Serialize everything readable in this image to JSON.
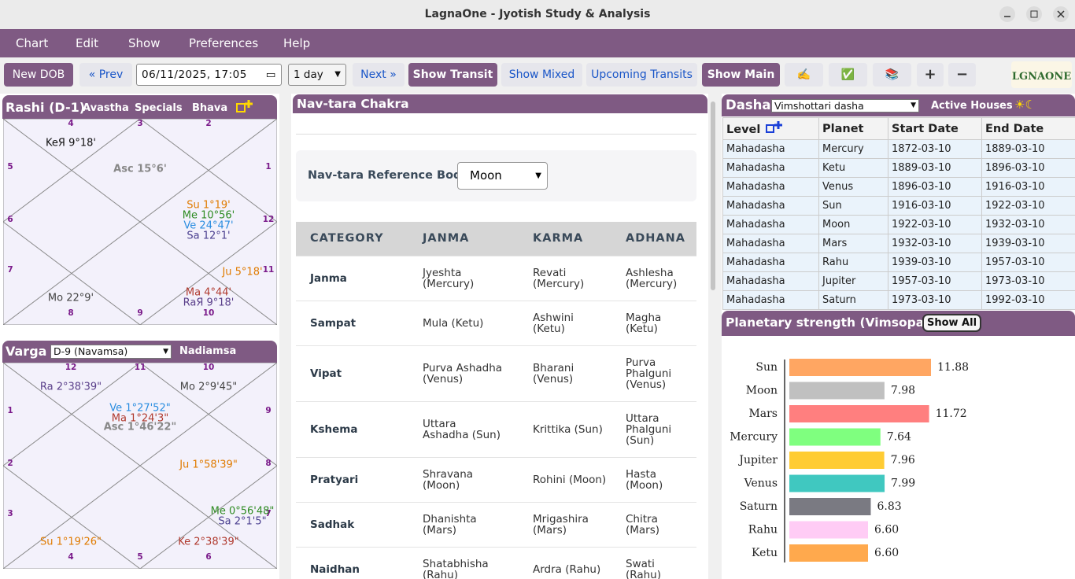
{
  "window": {
    "title": "LagnaOne - Jyotish Study & Analysis"
  },
  "menu": [
    "Chart",
    "Edit",
    "Show",
    "Preferences",
    "Help"
  ],
  "toolbar": {
    "new_dob": "New DOB",
    "prev": "« Prev",
    "datetime": "06/11/2025, 17:05",
    "step": "1 day",
    "next": "Next »",
    "show_transit": "Show Transit",
    "show_mixed": "Show Mixed",
    "upcoming_transits": "Upcoming Transits",
    "show_main": "Show Main",
    "icons": [
      "✍️",
      "✅",
      "📚",
      "+",
      "−"
    ],
    "logo": "LGNAONE"
  },
  "rashi": {
    "title": "Rashi (D-1)",
    "tabs": [
      "Avastha",
      "Specials",
      "Bhava"
    ],
    "houses": [
      "4",
      "3",
      "2",
      "5",
      "1",
      "6",
      "12",
      "7",
      "11",
      "8",
      "9",
      "10"
    ],
    "planets": [
      "KeЯ 9°18'",
      "Asc 15°6'",
      "Su 1°19'",
      "Me 10°56'",
      "Ve 24°47'",
      "Sa 12°1'",
      "Ju 5°18'",
      "Mo 22°9'",
      "Ma 4°44'",
      "RaЯ 9°18'"
    ]
  },
  "varga": {
    "title": "Varga",
    "division": "D-9 (Navamsa)",
    "tab": "Nadiamsa",
    "houses": [
      "12",
      "11",
      "10",
      "1",
      "9",
      "2",
      "8",
      "3",
      "7",
      "4",
      "5",
      "6"
    ],
    "planets": [
      "Ra 2°38'39\"",
      "Mo 2°9'45\"",
      "Ve 1°27'52\"",
      "Ma 1°24'3\"",
      "Asc 1°46'22\"",
      "Ju 1°58'39\"",
      "Me 0°56'48\"",
      "Sa 2°1'5\"",
      "Su 1°19'26\"",
      "Ke 2°38'39\""
    ]
  },
  "navtara": {
    "title": "Nav-tara Chakra",
    "reference_label": "Nav-tara Reference Body:",
    "reference": "Moon",
    "columns": [
      "CATEGORY",
      "JANMA",
      "KARMA",
      "ADHANA"
    ],
    "rows": [
      [
        "Janma",
        "Jyeshta (Mercury)",
        "Revati (Mercury)",
        "Ashlesha (Mercury)"
      ],
      [
        "Sampat",
        "Mula (Ketu)",
        "Ashwini (Ketu)",
        "Magha (Ketu)"
      ],
      [
        "Vipat",
        "Purva Ashadha (Venus)",
        "Bharani (Venus)",
        "Purva Phalguni (Venus)"
      ],
      [
        "Kshema",
        "Uttara Ashadha (Sun)",
        "Krittika (Sun)",
        "Uttara Phalguni (Sun)"
      ],
      [
        "Pratyari",
        "Shravana (Moon)",
        "Rohini (Moon)",
        "Hasta (Moon)"
      ],
      [
        "Sadhak",
        "Dhanishta (Mars)",
        "Mrigashira (Mars)",
        "Chitra (Mars)"
      ],
      [
        "Naidhan",
        "Shatabhisha (Rahu)",
        "Ardra (Rahu)",
        "Swati (Rahu)"
      ]
    ]
  },
  "dasha": {
    "title": "Dasha",
    "system": "Vimshottari dasha",
    "active_houses": "Active Houses",
    "symbols": "☀☾",
    "columns": [
      "Level",
      "Planet",
      "Start Date",
      "End Date"
    ],
    "rows": [
      [
        "Mahadasha",
        "Mercury",
        "1872-03-10",
        "1889-03-10"
      ],
      [
        "Mahadasha",
        "Ketu",
        "1889-03-10",
        "1896-03-10"
      ],
      [
        "Mahadasha",
        "Venus",
        "1896-03-10",
        "1916-03-10"
      ],
      [
        "Mahadasha",
        "Sun",
        "1916-03-10",
        "1922-03-10"
      ],
      [
        "Mahadasha",
        "Moon",
        "1922-03-10",
        "1932-03-10"
      ],
      [
        "Mahadasha",
        "Mars",
        "1932-03-10",
        "1939-03-10"
      ],
      [
        "Mahadasha",
        "Rahu",
        "1939-03-10",
        "1957-03-10"
      ],
      [
        "Mahadasha",
        "Jupiter",
        "1957-03-10",
        "1973-03-10"
      ],
      [
        "Mahadasha",
        "Saturn",
        "1973-03-10",
        "1992-03-10"
      ]
    ]
  },
  "strength": {
    "title": "Planetary strength (Vimsopaka)",
    "button": "Show All"
  },
  "chart_data": {
    "type": "bar",
    "orientation": "horizontal",
    "categories": [
      "Sun",
      "Moon",
      "Mars",
      "Mercury",
      "Jupiter",
      "Venus",
      "Saturn",
      "Rahu",
      "Ketu"
    ],
    "values": [
      11.88,
      7.98,
      11.72,
      7.64,
      7.96,
      7.99,
      6.83,
      6.6,
      6.6
    ],
    "value_labels": [
      "11.88",
      "7.98",
      "11.72",
      "7.64",
      "7.96",
      "7.99",
      "6.83",
      "6.60",
      "6.60"
    ],
    "colors": [
      "#ffa662",
      "#c0c0c0",
      "#ff7f7f",
      "#7fff7f",
      "#ffcc33",
      "#40c8c0",
      "#7a7a82",
      "#ffccf5",
      "#ffa94d"
    ]
  }
}
